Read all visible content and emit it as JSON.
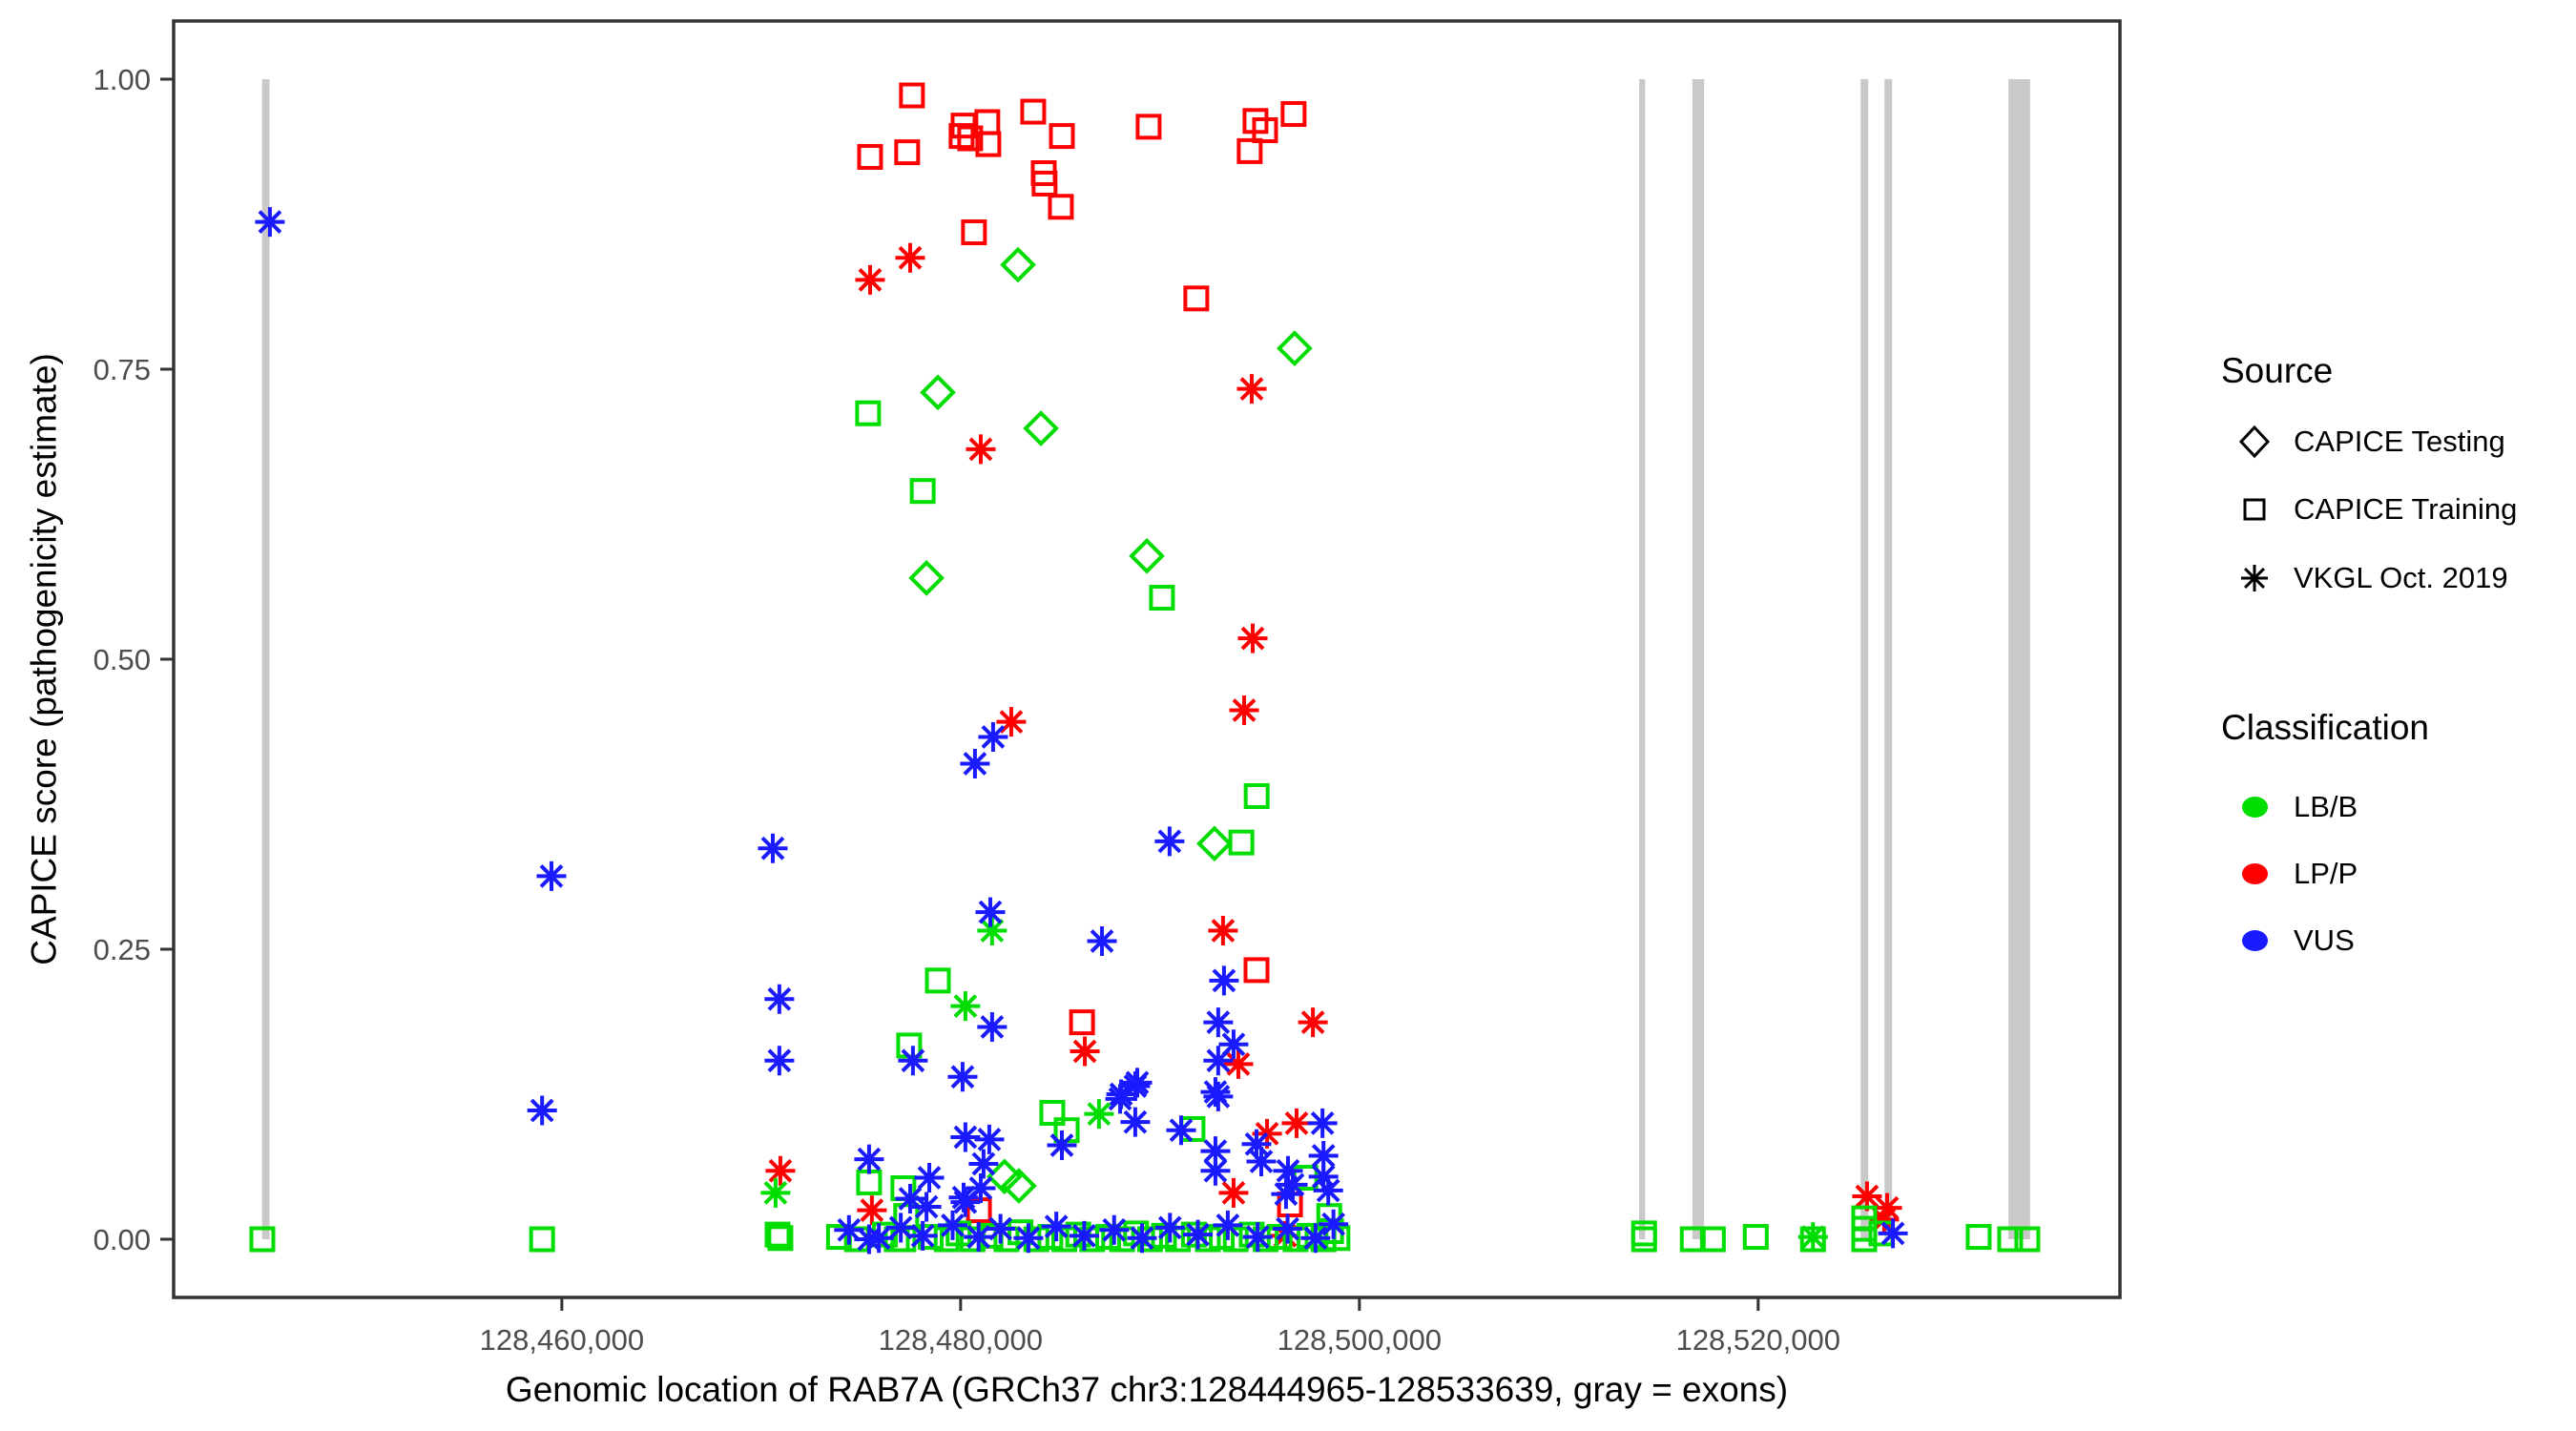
{
  "chart_data": {
    "type": "scatter",
    "title": "",
    "xlabel": "Genomic location of RAB7A (GRCh37 chr3:128444965-128533639, gray = exons)",
    "ylabel": "CAPICE score (pathogenicity estimate)",
    "xlim": [
      128440531,
      128538145
    ],
    "ylim": [
      0,
      1
    ],
    "grid": false,
    "legend_position": "right",
    "x_ticks": [
      {
        "value": 128460000,
        "label": "128,460,000"
      },
      {
        "value": 128480000,
        "label": "128,480,000"
      },
      {
        "value": 128500000,
        "label": "128,500,000"
      },
      {
        "value": 128520000,
        "label": "128,520,000"
      }
    ],
    "y_ticks": [
      {
        "value": 0.0,
        "label": "0.00"
      },
      {
        "value": 0.25,
        "label": "0.25"
      },
      {
        "value": 0.5,
        "label": "0.50"
      },
      {
        "value": 0.75,
        "label": "0.75"
      },
      {
        "value": 1.0,
        "label": "1.00"
      }
    ],
    "exon_color": "#c9c9c9",
    "exons": [
      [
        128444965,
        128445340
      ],
      [
        128514030,
        128514330
      ],
      [
        128516700,
        128517290
      ],
      [
        128525140,
        128525520
      ],
      [
        128526340,
        128526720
      ],
      [
        128532550,
        128533640
      ]
    ],
    "legend": {
      "source_title": "Source",
      "source_items": [
        {
          "label": "CAPICE Testing",
          "shape": "diamond"
        },
        {
          "label": "CAPICE Training",
          "shape": "square"
        },
        {
          "label": "VKGL Oct. 2019",
          "shape": "asterisk"
        }
      ],
      "classification_title": "Classification",
      "classification_items": [
        {
          "label": "LB/B",
          "color": "#00dd00"
        },
        {
          "label": "LP/P",
          "color": "#ff0000"
        },
        {
          "label": "VUS",
          "color": "#1a1aff"
        }
      ]
    },
    "colors": {
      "LB/B": "#00dd00",
      "LP/P": "#ff0000",
      "VUS": "#1a1aff"
    },
    "shape_of_source": {
      "CAPICE Testing": "di",
      "CAPICE Training": "sq",
      "VKGL Oct. 2019": "as"
    },
    "points": [
      [
        128477560,
        0.986,
        "LP/P",
        "sq"
      ],
      [
        128475460,
        0.933,
        "LP/P",
        "sq"
      ],
      [
        128477320,
        0.937,
        "LP/P",
        "sq"
      ],
      [
        128480150,
        0.96,
        "LP/P",
        "sq"
      ],
      [
        128480050,
        0.951,
        "LP/P",
        "sq"
      ],
      [
        128480480,
        0.949,
        "LP/P",
        "sq"
      ],
      [
        128481340,
        0.963,
        "LP/P",
        "sq"
      ],
      [
        128481390,
        0.944,
        "LP/P",
        "sq"
      ],
      [
        128483640,
        0.972,
        "LP/P",
        "sq"
      ],
      [
        128485080,
        0.951,
        "LP/P",
        "sq"
      ],
      [
        128489430,
        0.959,
        "LP/P",
        "sq"
      ],
      [
        128494790,
        0.964,
        "LP/P",
        "sq"
      ],
      [
        128495270,
        0.956,
        "LP/P",
        "sq"
      ],
      [
        128494500,
        0.938,
        "LP/P",
        "sq"
      ],
      [
        128496700,
        0.97,
        "LP/P",
        "sq"
      ],
      [
        128484170,
        0.919,
        "LP/P",
        "sq"
      ],
      [
        128484210,
        0.91,
        "LP/P",
        "sq"
      ],
      [
        128485030,
        0.89,
        "LP/P",
        "sq"
      ],
      [
        128480670,
        0.868,
        "LP/P",
        "sq"
      ],
      [
        128491820,
        0.811,
        "LP/P",
        "sq"
      ],
      [
        128494840,
        0.232,
        "LP/P",
        "sq"
      ],
      [
        128486090,
        0.187,
        "LP/P",
        "sq"
      ],
      [
        128496520,
        0.03,
        "LP/P",
        "sq"
      ],
      [
        128480920,
        0.025,
        "LP/P",
        "sq"
      ],
      [
        128477470,
        0.846,
        "LP/P",
        "as"
      ],
      [
        128475460,
        0.827,
        "LP/P",
        "as"
      ],
      [
        128494600,
        0.733,
        "LP/P",
        "as"
      ],
      [
        128481010,
        0.681,
        "LP/P",
        "as"
      ],
      [
        128494650,
        0.518,
        "LP/P",
        "as"
      ],
      [
        128494220,
        0.456,
        "LP/P",
        "as"
      ],
      [
        128482540,
        0.446,
        "LP/P",
        "as"
      ],
      [
        128493160,
        0.266,
        "LP/P",
        "as"
      ],
      [
        128486230,
        0.162,
        "LP/P",
        "as"
      ],
      [
        128497670,
        0.187,
        "LP/P",
        "as"
      ],
      [
        128493930,
        0.151,
        "LP/P",
        "as"
      ],
      [
        128496850,
        0.1,
        "LP/P",
        "as"
      ],
      [
        128495370,
        0.091,
        "LP/P",
        "as"
      ],
      [
        128470960,
        0.059,
        "LP/P",
        "as"
      ],
      [
        128475550,
        0.025,
        "LP/P",
        "as"
      ],
      [
        128493690,
        0.04,
        "LP/P",
        "as"
      ],
      [
        128525460,
        0.037,
        "LP/P",
        "as"
      ],
      [
        128526470,
        0.027,
        "LP/P",
        "as"
      ],
      [
        128526320,
        0.017,
        "LP/P",
        "as"
      ],
      [
        128496280,
        0.003,
        "LP/P",
        "as"
      ],
      [
        128482880,
        0.84,
        "LB/B",
        "di"
      ],
      [
        128496750,
        0.768,
        "LB/B",
        "di"
      ],
      [
        128478860,
        0.73,
        "LB/B",
        "di"
      ],
      [
        128484030,
        0.699,
        "LB/B",
        "di"
      ],
      [
        128478290,
        0.57,
        "LB/B",
        "di"
      ],
      [
        128489340,
        0.589,
        "LB/B",
        "di"
      ],
      [
        128492730,
        0.341,
        "LB/B",
        "di"
      ],
      [
        128482200,
        0.054,
        "LB/B",
        "di"
      ],
      [
        128482920,
        0.046,
        "LB/B",
        "di"
      ],
      [
        128475360,
        0.712,
        "LB/B",
        "sq"
      ],
      [
        128478100,
        0.645,
        "LB/B",
        "sq"
      ],
      [
        128490100,
        0.553,
        "LB/B",
        "sq"
      ],
      [
        128494850,
        0.382,
        "LB/B",
        "sq"
      ],
      [
        128494080,
        0.342,
        "LB/B",
        "sq"
      ],
      [
        128478860,
        0.223,
        "LB/B",
        "sq"
      ],
      [
        128477420,
        0.167,
        "LB/B",
        "sq"
      ],
      [
        128491630,
        0.095,
        "LB/B",
        "sq"
      ],
      [
        128484600,
        0.109,
        "LB/B",
        "sq"
      ],
      [
        128485320,
        0.094,
        "LB/B",
        "sq"
      ],
      [
        128475410,
        0.049,
        "LB/B",
        "sq"
      ],
      [
        128477130,
        0.044,
        "LB/B",
        "sq"
      ],
      [
        128477270,
        0.02,
        "LB/B",
        "sq"
      ],
      [
        128497290,
        0.053,
        "LB/B",
        "sq"
      ],
      [
        128498490,
        0.02,
        "LB/B",
        "sq"
      ],
      [
        128498580,
        0.007,
        "LB/B",
        "sq"
      ],
      [
        128459010,
        0.0,
        "LB/B",
        "sq"
      ],
      [
        128444980,
        0.0,
        "LB/B",
        "sq"
      ],
      [
        128470820,
        0.004,
        "LB/B",
        "sq"
      ],
      [
        128470960,
        0.001,
        "LB/B",
        "sq"
      ],
      [
        128514280,
        0.0,
        "LB/B",
        "sq"
      ],
      [
        128514280,
        0.005,
        "LB/B",
        "sq"
      ],
      [
        128516720,
        0.0,
        "LB/B",
        "sq"
      ],
      [
        128517730,
        0.0,
        "LB/B",
        "sq"
      ],
      [
        128519880,
        0.002,
        "LB/B",
        "sq"
      ],
      [
        128522750,
        0.0,
        "LB/B",
        "sq"
      ],
      [
        128525320,
        0.018,
        "LB/B",
        "sq"
      ],
      [
        128525320,
        0.009,
        "LB/B",
        "sq"
      ],
      [
        128525320,
        0.0,
        "LB/B",
        "sq"
      ],
      [
        128526180,
        0.005,
        "LB/B",
        "sq"
      ],
      [
        128531060,
        0.002,
        "LB/B",
        "sq"
      ],
      [
        128532640,
        0.0,
        "LB/B",
        "sq"
      ],
      [
        128533500,
        0.0,
        "LB/B",
        "sq"
      ],
      [
        128477130,
        0.0,
        "LB/B",
        "sq"
      ],
      [
        128473900,
        0.002,
        "LB/B",
        "sq"
      ],
      [
        128474800,
        0.0,
        "LB/B",
        "sq"
      ],
      [
        128476200,
        0.004,
        "LB/B",
        "sq"
      ],
      [
        128476800,
        0.0,
        "LB/B",
        "sq"
      ],
      [
        128478500,
        0.002,
        "LB/B",
        "sq"
      ],
      [
        128479300,
        0.0,
        "LB/B",
        "sq"
      ],
      [
        128479900,
        0.005,
        "LB/B",
        "sq"
      ],
      [
        128480600,
        0.0,
        "LB/B",
        "sq"
      ],
      [
        128481500,
        0.003,
        "LB/B",
        "sq"
      ],
      [
        128482300,
        0.0,
        "LB/B",
        "sq"
      ],
      [
        128483000,
        0.006,
        "LB/B",
        "sq"
      ],
      [
        128483800,
        0.0,
        "LB/B",
        "sq"
      ],
      [
        128484500,
        0.002,
        "LB/B",
        "sq"
      ],
      [
        128485200,
        0.0,
        "LB/B",
        "sq"
      ],
      [
        128485900,
        0.004,
        "LB/B",
        "sq"
      ],
      [
        128486600,
        0.0,
        "LB/B",
        "sq"
      ],
      [
        128487400,
        0.002,
        "LB/B",
        "sq"
      ],
      [
        128488100,
        0.0,
        "LB/B",
        "sq"
      ],
      [
        128488800,
        0.005,
        "LB/B",
        "sq"
      ],
      [
        128489500,
        0.0,
        "LB/B",
        "sq"
      ],
      [
        128490200,
        0.003,
        "LB/B",
        "sq"
      ],
      [
        128490900,
        0.0,
        "LB/B",
        "sq"
      ],
      [
        128491700,
        0.004,
        "LB/B",
        "sq"
      ],
      [
        128492400,
        0.0,
        "LB/B",
        "sq"
      ],
      [
        128493100,
        0.002,
        "LB/B",
        "sq"
      ],
      [
        128493800,
        0.0,
        "LB/B",
        "sq"
      ],
      [
        128494600,
        0.004,
        "LB/B",
        "sq"
      ],
      [
        128495300,
        0.0,
        "LB/B",
        "sq"
      ],
      [
        128496000,
        0.002,
        "LB/B",
        "sq"
      ],
      [
        128496800,
        0.0,
        "LB/B",
        "sq"
      ],
      [
        128497500,
        0.003,
        "LB/B",
        "sq"
      ],
      [
        128498200,
        0.0,
        "LB/B",
        "sq"
      ],
      [
        128498900,
        0.001,
        "LB/B",
        "sq"
      ],
      [
        128470720,
        0.04,
        "LB/B",
        "as"
      ],
      [
        128481580,
        0.266,
        "LB/B",
        "as"
      ],
      [
        128480240,
        0.201,
        "LB/B",
        "as"
      ],
      [
        128486940,
        0.108,
        "LB/B",
        "as"
      ],
      [
        128522750,
        0.002,
        "LB/B",
        "as"
      ],
      [
        128445360,
        0.877,
        "VUS",
        "as"
      ],
      [
        128459480,
        0.313,
        "VUS",
        "as"
      ],
      [
        128470580,
        0.337,
        "VUS",
        "as"
      ],
      [
        128470910,
        0.207,
        "VUS",
        "as"
      ],
      [
        128470910,
        0.154,
        "VUS",
        "as"
      ],
      [
        128459010,
        0.111,
        "VUS",
        "as"
      ],
      [
        128481630,
        0.433,
        "VUS",
        "as"
      ],
      [
        128480720,
        0.41,
        "VUS",
        "as"
      ],
      [
        128490480,
        0.343,
        "VUS",
        "as"
      ],
      [
        128481490,
        0.282,
        "VUS",
        "as"
      ],
      [
        128487090,
        0.257,
        "VUS",
        "as"
      ],
      [
        128493210,
        0.223,
        "VUS",
        "as"
      ],
      [
        128481580,
        0.183,
        "VUS",
        "as"
      ],
      [
        128492920,
        0.187,
        "VUS",
        "as"
      ],
      [
        128493690,
        0.168,
        "VUS",
        "as"
      ],
      [
        128492920,
        0.154,
        "VUS",
        "as"
      ],
      [
        128480100,
        0.14,
        "VUS",
        "as"
      ],
      [
        128477610,
        0.154,
        "VUS",
        "as"
      ],
      [
        128488760,
        0.132,
        "VUS",
        "as"
      ],
      [
        128488000,
        0.121,
        "VUS",
        "as"
      ],
      [
        128492920,
        0.123,
        "VUS",
        "as"
      ],
      [
        128488860,
        0.135,
        "VUS",
        "as"
      ],
      [
        128488050,
        0.125,
        "VUS",
        "as"
      ],
      [
        128488760,
        0.101,
        "VUS",
        "as"
      ],
      [
        128492780,
        0.127,
        "VUS",
        "as"
      ],
      [
        128491060,
        0.094,
        "VUS",
        "as"
      ],
      [
        128494840,
        0.082,
        "VUS",
        "as"
      ],
      [
        128495080,
        0.067,
        "VUS",
        "as"
      ],
      [
        128498150,
        0.1,
        "VUS",
        "as"
      ],
      [
        128498200,
        0.072,
        "VUS",
        "as"
      ],
      [
        128498200,
        0.054,
        "VUS",
        "as"
      ],
      [
        128498440,
        0.042,
        "VUS",
        "as"
      ],
      [
        128496660,
        0.047,
        "VUS",
        "as"
      ],
      [
        128475410,
        0.069,
        "VUS",
        "as"
      ],
      [
        128475410,
        0.0,
        "VUS",
        "as"
      ],
      [
        128478430,
        0.053,
        "VUS",
        "as"
      ],
      [
        128477470,
        0.035,
        "VUS",
        "as"
      ],
      [
        128478290,
        0.028,
        "VUS",
        "as"
      ],
      [
        128480240,
        0.088,
        "VUS",
        "as"
      ],
      [
        128480240,
        0.032,
        "VUS",
        "as"
      ],
      [
        128481440,
        0.086,
        "VUS",
        "as"
      ],
      [
        128481150,
        0.065,
        "VUS",
        "as"
      ],
      [
        128480150,
        0.036,
        "VUS",
        "as"
      ],
      [
        128481010,
        0.044,
        "VUS",
        "as"
      ],
      [
        128485080,
        0.081,
        "VUS",
        "as"
      ],
      [
        128526760,
        0.005,
        "VUS",
        "as"
      ],
      [
        128492780,
        0.076,
        "VUS",
        "as"
      ],
      [
        128492780,
        0.059,
        "VUS",
        "as"
      ],
      [
        128496420,
        0.059,
        "VUS",
        "as"
      ],
      [
        128496320,
        0.039,
        "VUS",
        "as"
      ],
      [
        128474400,
        0.008,
        "VUS",
        "as"
      ],
      [
        128475900,
        0.001,
        "VUS",
        "as"
      ],
      [
        128477000,
        0.01,
        "VUS",
        "as"
      ],
      [
        128478100,
        0.003,
        "VUS",
        "as"
      ],
      [
        128479600,
        0.012,
        "VUS",
        "as"
      ],
      [
        128480900,
        0.002,
        "VUS",
        "as"
      ],
      [
        128482000,
        0.009,
        "VUS",
        "as"
      ],
      [
        128483400,
        0.001,
        "VUS",
        "as"
      ],
      [
        128484800,
        0.011,
        "VUS",
        "as"
      ],
      [
        128486200,
        0.003,
        "VUS",
        "as"
      ],
      [
        128487700,
        0.008,
        "VUS",
        "as"
      ],
      [
        128489100,
        0.001,
        "VUS",
        "as"
      ],
      [
        128490500,
        0.01,
        "VUS",
        "as"
      ],
      [
        128491900,
        0.004,
        "VUS",
        "as"
      ],
      [
        128493400,
        0.012,
        "VUS",
        "as"
      ],
      [
        128494900,
        0.002,
        "VUS",
        "as"
      ],
      [
        128496400,
        0.009,
        "VUS",
        "as"
      ],
      [
        128497800,
        0.001,
        "VUS",
        "as"
      ],
      [
        128498700,
        0.013,
        "VUS",
        "as"
      ]
    ]
  }
}
